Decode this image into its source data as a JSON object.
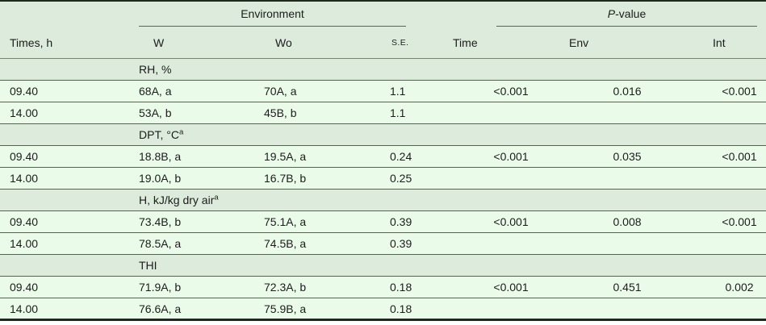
{
  "table": {
    "spanners": {
      "environment": "Environment",
      "p_italic": "P",
      "p_rest": "-value"
    },
    "header": {
      "times": "Times, h",
      "w": "W",
      "wo": "Wo",
      "se": "S.E.",
      "time": "Time",
      "env": "Env",
      "int": "Int"
    },
    "groups": [
      {
        "label": "RH, %",
        "sup": "",
        "rows": [
          {
            "time": "09.40",
            "w": "68A, a",
            "wo": "70A, a",
            "se": "1.1",
            "p_time": "<0.001",
            "p_env": "0.016",
            "p_int": "<0.001"
          },
          {
            "time": "14.00",
            "w": "53A, b",
            "wo": "45B, b",
            "se": "1.1",
            "p_time": "",
            "p_env": "",
            "p_int": ""
          }
        ]
      },
      {
        "label": "DPT, °C",
        "sup": "a",
        "rows": [
          {
            "time": "09.40",
            "w": "18.8B, a",
            "wo": "19.5A, a",
            "se": "0.24",
            "p_time": "<0.001",
            "p_env": "0.035",
            "p_int": "<0.001"
          },
          {
            "time": "14.00",
            "w": "19.0A, b",
            "wo": "16.7B, b",
            "se": "0.25",
            "p_time": "",
            "p_env": "",
            "p_int": ""
          }
        ]
      },
      {
        "label": "H, kJ/kg dry air",
        "sup": "a",
        "rows": [
          {
            "time": "09.40",
            "w": "73.4B, b",
            "wo": "75.1A, a",
            "se": "0.39",
            "p_time": "<0.001",
            "p_env": "0.008",
            "p_int": "<0.001"
          },
          {
            "time": "14.00",
            "w": "78.5A, a",
            "wo": "74.5B, a",
            "se": "0.39",
            "p_time": "",
            "p_env": "",
            "p_int": ""
          }
        ]
      },
      {
        "label": "THI",
        "sup": "",
        "rows": [
          {
            "time": "09.40",
            "w": "71.9A, b",
            "wo": "72.3A, b",
            "se": "0.18",
            "p_time": "<0.001",
            "p_env": "0.451",
            "p_int": "0.002"
          },
          {
            "time": "14.00",
            "w": "76.6A, a",
            "wo": "75.9B, a",
            "se": "0.18",
            "p_time": "",
            "p_env": "",
            "p_int": ""
          }
        ]
      }
    ],
    "colors": {
      "header_group_row_bg": "#dcebdb",
      "data_row_bg": "#eafce9",
      "rule_thin": "#55634f",
      "rule_header": "#76856f",
      "border_heavy": "#1e281e",
      "text": "#1c1c1c"
    }
  }
}
